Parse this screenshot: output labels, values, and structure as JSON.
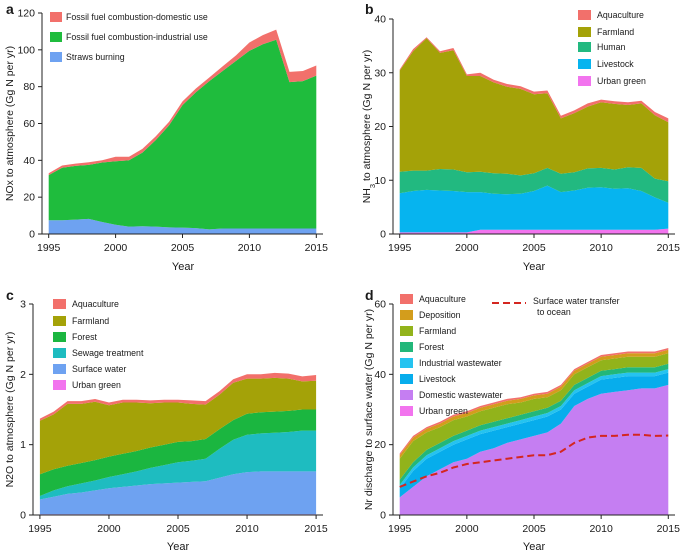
{
  "chart_data": [
    {
      "panel": "a",
      "type": "area",
      "stacked": true,
      "xlabel": "Year",
      "ylabel": "NOx to atmosphere (Gg N per yr)",
      "xlim": [
        1994.5,
        2015.5
      ],
      "ylim": [
        0,
        120
      ],
      "xticks": [
        1995,
        2000,
        2005,
        2010,
        2015
      ],
      "yticks": [
        0,
        20,
        40,
        60,
        80,
        100,
        120
      ],
      "legend_position": "top-left",
      "x": [
        1995,
        1996,
        1997,
        1998,
        1999,
        2000,
        2001,
        2002,
        2003,
        2004,
        2005,
        2006,
        2007,
        2008,
        2009,
        2010,
        2011,
        2012,
        2013,
        2014,
        2015
      ],
      "series": [
        {
          "name": "Straws burning",
          "color": "#6ea2f1",
          "values": [
            7.5,
            7.5,
            7.8,
            8.2,
            6.5,
            5.0,
            4.0,
            4.2,
            4.0,
            3.6,
            3.5,
            3.2,
            2.5,
            3.0,
            3.0,
            3.0,
            3.0,
            3.0,
            3.0,
            3.0,
            3.0
          ]
        },
        {
          "name": "Fossil fuel combustion-industrial use",
          "color": "#1fbc3d",
          "values": [
            24.5,
            28.5,
            29.2,
            29.3,
            32.3,
            34.5,
            36.0,
            40.0,
            47.0,
            55.4,
            66.5,
            73.8,
            80.5,
            85.5,
            91.0,
            96.5,
            100.0,
            102.5,
            79.5,
            80.0,
            83.0
          ]
        },
        {
          "name": "Fossil fuel combustion-domestic use",
          "color": "#f2706b",
          "values": [
            1.0,
            1.2,
            1.2,
            1.5,
            1.2,
            2.5,
            2.0,
            2.0,
            2.0,
            2.0,
            2.0,
            2.0,
            2.0,
            2.5,
            3.0,
            4.5,
            5.0,
            5.5,
            5.5,
            5.5,
            5.5
          ]
        }
      ]
    },
    {
      "panel": "b",
      "type": "area",
      "stacked": true,
      "xlabel": "Year",
      "ylabel": "NH3 to atmosphere (Gg N per yr)",
      "xlim": [
        1994.5,
        2015.5
      ],
      "ylim": [
        0,
        40
      ],
      "xticks": [
        1995,
        2000,
        2005,
        2010,
        2015
      ],
      "yticks": [
        0,
        10,
        20,
        30,
        40
      ],
      "legend_position": "top-right",
      "x": [
        1995,
        1996,
        1997,
        1998,
        1999,
        2000,
        2001,
        2002,
        2003,
        2004,
        2005,
        2006,
        2007,
        2008,
        2009,
        2010,
        2011,
        2012,
        2013,
        2014,
        2015
      ],
      "series": [
        {
          "name": "Urban green",
          "color": "#f274ee",
          "values": [
            0.3,
            0.3,
            0.3,
            0.3,
            0.3,
            0.3,
            0.8,
            0.8,
            0.8,
            0.8,
            0.8,
            0.8,
            0.8,
            0.8,
            0.8,
            0.8,
            0.8,
            0.8,
            0.8,
            0.8,
            1.0
          ]
        },
        {
          "name": "Livestock",
          "color": "#06b4ef",
          "values": [
            7.3,
            7.7,
            7.9,
            7.8,
            7.7,
            7.5,
            7.0,
            6.7,
            6.6,
            6.7,
            7.2,
            8.2,
            7.0,
            7.3,
            7.8,
            7.9,
            7.6,
            7.7,
            7.2,
            6.0,
            4.8
          ]
        },
        {
          "name": "Human",
          "color": "#22b980",
          "values": [
            4.0,
            3.8,
            3.6,
            4.0,
            4.0,
            3.7,
            3.8,
            3.8,
            3.8,
            3.4,
            3.3,
            3.3,
            3.4,
            3.4,
            3.6,
            3.6,
            3.6,
            3.9,
            4.3,
            3.5,
            4.0
          ]
        },
        {
          "name": "Farmland",
          "color": "#a4a208",
          "values": [
            18.8,
            22.2,
            24.6,
            21.6,
            22.2,
            17.9,
            17.8,
            16.9,
            16.2,
            16.1,
            14.7,
            13.9,
            10.3,
            11.0,
            11.5,
            12.2,
            12.2,
            11.6,
            12.0,
            11.8,
            11.0
          ]
        },
        {
          "name": "Aquaculture",
          "color": "#f2706b",
          "values": [
            0.2,
            0.4,
            0.2,
            0.3,
            0.4,
            0.3,
            0.6,
            0.5,
            0.5,
            0.5,
            0.5,
            0.5,
            0.5,
            0.5,
            0.6,
            0.5,
            0.5,
            0.5,
            0.5,
            0.6,
            0.7
          ]
        }
      ]
    },
    {
      "panel": "c",
      "type": "area",
      "stacked": true,
      "xlabel": "Year",
      "ylabel": "N2O to atmosphere (Gg N per yr)",
      "xlim": [
        1994.5,
        2015.5
      ],
      "ylim": [
        0,
        3
      ],
      "xticks": [
        1995,
        2000,
        2005,
        2010,
        2015
      ],
      "yticks": [
        0,
        1,
        2,
        3
      ],
      "legend_position": "top-left",
      "x": [
        1995,
        1996,
        1997,
        1998,
        1999,
        2000,
        2001,
        2002,
        2003,
        2004,
        2005,
        2006,
        2007,
        2008,
        2009,
        2010,
        2011,
        2012,
        2013,
        2014,
        2015
      ],
      "series": [
        {
          "name": "Urban green",
          "color": "#f274ee",
          "values": [
            0.01,
            0.01,
            0.01,
            0.01,
            0.01,
            0.01,
            0.01,
            0.01,
            0.01,
            0.01,
            0.01,
            0.01,
            0.01,
            0.01,
            0.01,
            0.01,
            0.01,
            0.01,
            0.01,
            0.01,
            0.01
          ]
        },
        {
          "name": "Surface water",
          "color": "#6ea2f1",
          "values": [
            0.21,
            0.25,
            0.29,
            0.31,
            0.34,
            0.37,
            0.39,
            0.41,
            0.43,
            0.44,
            0.45,
            0.46,
            0.47,
            0.52,
            0.57,
            0.6,
            0.61,
            0.61,
            0.61,
            0.61,
            0.61
          ]
        },
        {
          "name": "Sewage treatment",
          "color": "#1ebcc0",
          "values": [
            0.05,
            0.09,
            0.11,
            0.13,
            0.14,
            0.16,
            0.18,
            0.2,
            0.23,
            0.26,
            0.29,
            0.3,
            0.32,
            0.41,
            0.49,
            0.53,
            0.54,
            0.55,
            0.56,
            0.58,
            0.58
          ]
        },
        {
          "name": "Forest",
          "color": "#1bb640",
          "values": [
            0.31,
            0.3,
            0.29,
            0.29,
            0.29,
            0.29,
            0.29,
            0.29,
            0.29,
            0.29,
            0.29,
            0.28,
            0.28,
            0.28,
            0.28,
            0.3,
            0.3,
            0.3,
            0.3,
            0.3,
            0.3
          ]
        },
        {
          "name": "Farmland",
          "color": "#a4a208",
          "values": [
            0.76,
            0.78,
            0.88,
            0.84,
            0.83,
            0.73,
            0.73,
            0.69,
            0.63,
            0.6,
            0.56,
            0.53,
            0.49,
            0.49,
            0.53,
            0.5,
            0.48,
            0.48,
            0.46,
            0.4,
            0.41
          ]
        },
        {
          "name": "Aquaculture",
          "color": "#f2706b",
          "values": [
            0.03,
            0.04,
            0.04,
            0.04,
            0.04,
            0.04,
            0.04,
            0.04,
            0.04,
            0.04,
            0.04,
            0.05,
            0.05,
            0.05,
            0.05,
            0.06,
            0.06,
            0.07,
            0.07,
            0.07,
            0.08
          ]
        }
      ]
    },
    {
      "panel": "d",
      "type": "area",
      "stacked": true,
      "xlabel": "Year",
      "ylabel": "Nr discharge to surface water (Gg N per yr)",
      "xlim": [
        1994.5,
        2015.5
      ],
      "ylim": [
        0,
        60
      ],
      "xticks": [
        1995,
        2000,
        2005,
        2010,
        2015
      ],
      "yticks": [
        0,
        20,
        40,
        60
      ],
      "legend_position": "top-left",
      "x": [
        1995,
        1996,
        1997,
        1998,
        1999,
        2000,
        2001,
        2002,
        2003,
        2004,
        2005,
        2006,
        2007,
        2008,
        2009,
        2010,
        2011,
        2012,
        2013,
        2014,
        2015
      ],
      "series": [
        {
          "name": "Urban green",
          "color": "#f274ee",
          "values": [
            0.1,
            0.1,
            0.1,
            0.1,
            0.1,
            0.1,
            0.1,
            0.1,
            0.1,
            0.1,
            0.1,
            0.1,
            0.1,
            0.1,
            0.1,
            0.1,
            0.1,
            0.1,
            0.1,
            0.1,
            0.1
          ]
        },
        {
          "name": "Domestic wastewater",
          "color": "#c57ef2",
          "values": [
            4.9,
            7.9,
            10.9,
            12.9,
            14.9,
            15.9,
            17.9,
            18.9,
            20.4,
            21.4,
            22.4,
            23.4,
            25.9,
            30.9,
            32.9,
            34.4,
            34.9,
            35.4,
            35.9,
            35.9,
            36.9
          ]
        },
        {
          "name": "Livestock",
          "color": "#07adec",
          "values": [
            2.5,
            4.5,
            5.0,
            5.0,
            5.0,
            5.5,
            5.0,
            5.0,
            4.5,
            4.5,
            4.5,
            4.5,
            4.0,
            3.5,
            3.5,
            4.0,
            4.0,
            4.0,
            3.5,
            3.5,
            3.5
          ]
        },
        {
          "name": "Industrial wastewater",
          "color": "#25c3f0",
          "values": [
            1.0,
            1.0,
            1.0,
            1.0,
            1.0,
            1.0,
            1.0,
            1.0,
            1.0,
            1.0,
            1.0,
            1.0,
            1.0,
            1.0,
            1.0,
            1.0,
            1.0,
            1.0,
            1.0,
            1.0,
            1.0
          ]
        },
        {
          "name": "Forest",
          "color": "#22b77a",
          "values": [
            1.5,
            1.5,
            1.5,
            1.5,
            1.5,
            1.5,
            1.5,
            1.5,
            1.5,
            1.5,
            1.5,
            1.5,
            1.5,
            1.5,
            1.5,
            1.5,
            1.5,
            1.5,
            1.5,
            1.5,
            1.5
          ]
        },
        {
          "name": "Farmland",
          "color": "#92b31b",
          "values": [
            6.0,
            6.0,
            5.0,
            4.5,
            4.5,
            4.0,
            4.0,
            4.0,
            4.0,
            3.5,
            3.5,
            3.0,
            3.0,
            3.0,
            3.0,
            3.0,
            3.0,
            3.0,
            3.0,
            3.0,
            3.0
          ]
        },
        {
          "name": "Deposition",
          "color": "#d39d1c",
          "values": [
            1.0,
            1.0,
            1.0,
            1.0,
            1.0,
            1.0,
            1.0,
            1.0,
            1.0,
            1.0,
            1.0,
            1.0,
            1.0,
            1.0,
            1.0,
            1.0,
            1.0,
            1.0,
            1.0,
            1.0,
            1.0
          ]
        },
        {
          "name": "Aquaculture",
          "color": "#f2706b",
          "values": [
            0.5,
            0.5,
            0.5,
            0.5,
            0.5,
            0.5,
            0.5,
            0.5,
            0.5,
            0.5,
            0.5,
            0.5,
            0.5,
            0.5,
            0.5,
            0.5,
            0.5,
            0.5,
            0.5,
            0.5,
            0.5
          ]
        }
      ],
      "line_series": [
        {
          "name": "Surface water transfer to ocean",
          "color": "#d42620",
          "dashed": true,
          "values": [
            8.0,
            9.5,
            11.0,
            12.0,
            13.5,
            14.5,
            15.0,
            15.5,
            16.0,
            16.5,
            17.0,
            17.0,
            18.0,
            20.5,
            22.0,
            22.5,
            22.5,
            22.8,
            22.8,
            22.5,
            22.6
          ]
        }
      ]
    }
  ]
}
